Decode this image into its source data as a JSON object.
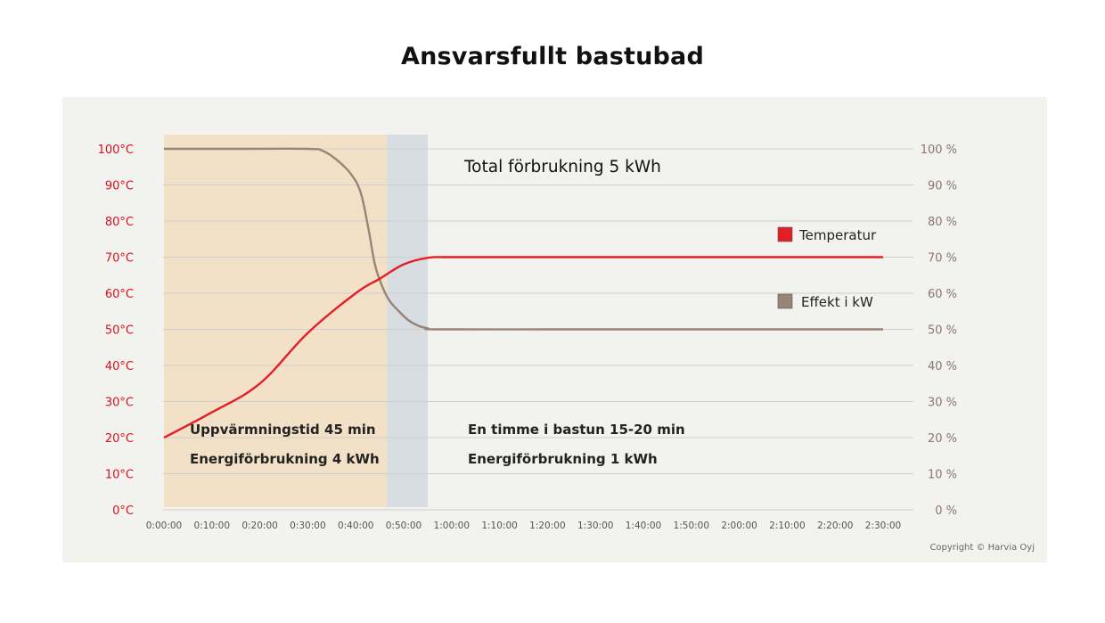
{
  "title": "Ansvarsfullt bastubad",
  "copyright": "Copyright © Harvia Oyj",
  "colors": {
    "temperature": "#e41e26",
    "power": "#9a8378",
    "heating_phase": "#f2e1c6",
    "transition_phase": "#d8dde1",
    "left_axis": "#d6121e",
    "right_axis": "#8a776e"
  },
  "chart_data": {
    "type": "line",
    "title": "Ansvarsfullt bastubad",
    "x_ticks": [
      "0:00:00",
      "0:10:00",
      "0:20:00",
      "0:30:00",
      "0:40:00",
      "0:50:00",
      "1:00:00",
      "1:10:00",
      "1:20:00",
      "1:30:00",
      "1:40:00",
      "1:50:00",
      "2:00:00",
      "2:10:00",
      "2:20:00",
      "2:30:00"
    ],
    "xlim_minutes": [
      0,
      150
    ],
    "left_axis": {
      "ticks": [
        "0°C",
        "10°C",
        "20°C",
        "30°C",
        "40°C",
        "50°C",
        "60°C",
        "70°C",
        "80°C",
        "90°C",
        "100°C"
      ],
      "ylim": [
        0,
        100
      ]
    },
    "right_axis": {
      "ticks": [
        "0 %",
        "10 %",
        "20 %",
        "30 %",
        "40 %",
        "50 %",
        "60 %",
        "70 %",
        "80 %",
        "90 %",
        "100 %"
      ],
      "ylim": [
        0,
        100
      ]
    },
    "grid": true,
    "legend_position": "right",
    "series": [
      {
        "name": "Temperatur",
        "axis": "left",
        "points": [
          [
            0,
            20
          ],
          [
            10,
            27
          ],
          [
            20,
            35
          ],
          [
            30,
            49
          ],
          [
            40,
            60
          ],
          [
            45,
            64
          ],
          [
            50,
            68
          ],
          [
            55,
            69.8
          ],
          [
            60,
            70
          ],
          [
            80,
            70
          ],
          [
            100,
            70
          ],
          [
            120,
            70
          ],
          [
            140,
            70
          ],
          [
            150,
            70
          ]
        ]
      },
      {
        "name": "Effekt i kW",
        "axis": "right",
        "points": [
          [
            0,
            100
          ],
          [
            15,
            100
          ],
          [
            30,
            100
          ],
          [
            33,
            99.5
          ],
          [
            36,
            97
          ],
          [
            39,
            93
          ],
          [
            41,
            88
          ],
          [
            42.5,
            79
          ],
          [
            44,
            68
          ],
          [
            45.5,
            62
          ],
          [
            47,
            58
          ],
          [
            49,
            55
          ],
          [
            51,
            52.5
          ],
          [
            53,
            51
          ],
          [
            55,
            50.3
          ],
          [
            57,
            50
          ],
          [
            80,
            50
          ],
          [
            100,
            50
          ],
          [
            120,
            50
          ],
          [
            140,
            50
          ],
          [
            150,
            50
          ]
        ]
      }
    ],
    "phases": [
      {
        "name": "heating",
        "start_minutes": 0,
        "end_minutes": 46.5
      },
      {
        "name": "transition",
        "start_minutes": 46.5,
        "end_minutes": 55
      }
    ],
    "annotations": {
      "total": "Total förbrukning 5 kWh",
      "heating_time": "Uppvärmningstid 45 min",
      "heating_energy": "Energiförbrukning 4 kWh",
      "bathing_time": "En timme i bastun 15-20 min",
      "bathing_energy": "Energiförbrukning 1 kWh"
    }
  }
}
